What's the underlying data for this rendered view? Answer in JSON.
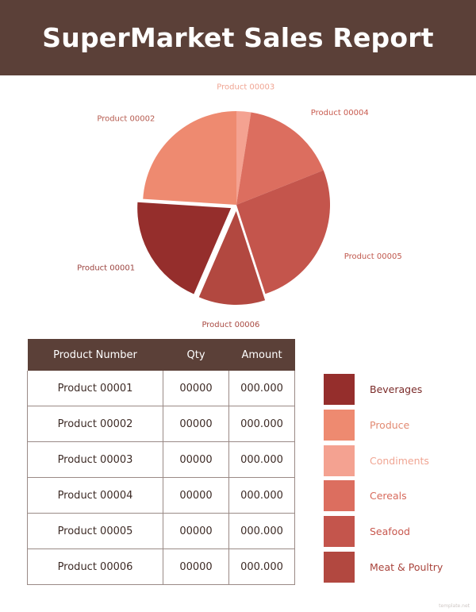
{
  "header": {
    "title": "SuperMarket Sales Report"
  },
  "colors": {
    "header_bg": "#5b4038",
    "text_dark": "#3d2b26"
  },
  "chart_data": {
    "type": "pie",
    "title": "",
    "slices": [
      {
        "label": "Product 00003",
        "value": 2.5,
        "color": "#f4a291",
        "label_color": "#f0a593",
        "exploded": false
      },
      {
        "label": "Product 00004",
        "value": 16.5,
        "color": "#dc6e5f",
        "label_color": "#c85a4e",
        "exploded": false
      },
      {
        "label": "Product 00005",
        "value": 26.0,
        "color": "#c4554c",
        "label_color": "#c0584d",
        "exploded": false
      },
      {
        "label": "Product 00006",
        "value": 11.5,
        "color": "#b24840",
        "label_color": "#a94a42",
        "exploded": true
      },
      {
        "label": "Product 00001",
        "value": 19.5,
        "color": "#952e2c",
        "label_color": "#9c4540",
        "exploded": true
      },
      {
        "label": "Product 00002",
        "value": 24.0,
        "color": "#ee8a70",
        "label_color": "#b55a4e",
        "exploded": false
      }
    ]
  },
  "table": {
    "headers": [
      "Product Number",
      "Qty",
      "Amount"
    ],
    "rows": [
      [
        "Product 00001",
        "00000",
        "000.000"
      ],
      [
        "Product 00002",
        "00000",
        "000.000"
      ],
      [
        "Product 00003",
        "00000",
        "000.000"
      ],
      [
        "Product 00004",
        "00000",
        "000.000"
      ],
      [
        "Product 00005",
        "00000",
        "000.000"
      ],
      [
        "Product 00006",
        "00000",
        "000.000"
      ]
    ]
  },
  "legend": [
    {
      "label": "Beverages",
      "color": "#952e2c",
      "text_color": "#7a2a28"
    },
    {
      "label": "Produce",
      "color": "#ee8a70",
      "text_color": "#e28a72"
    },
    {
      "label": "Condiments",
      "color": "#f4a291",
      "text_color": "#f0a593"
    },
    {
      "label": "Cereals",
      "color": "#dc6e5f",
      "text_color": "#d76a5c"
    },
    {
      "label": "Seafood",
      "color": "#c4554c",
      "text_color": "#c8584e"
    },
    {
      "label": "Meat & Poultry",
      "color": "#b24840",
      "text_color": "#a9443c"
    }
  ],
  "watermark": "template.net"
}
